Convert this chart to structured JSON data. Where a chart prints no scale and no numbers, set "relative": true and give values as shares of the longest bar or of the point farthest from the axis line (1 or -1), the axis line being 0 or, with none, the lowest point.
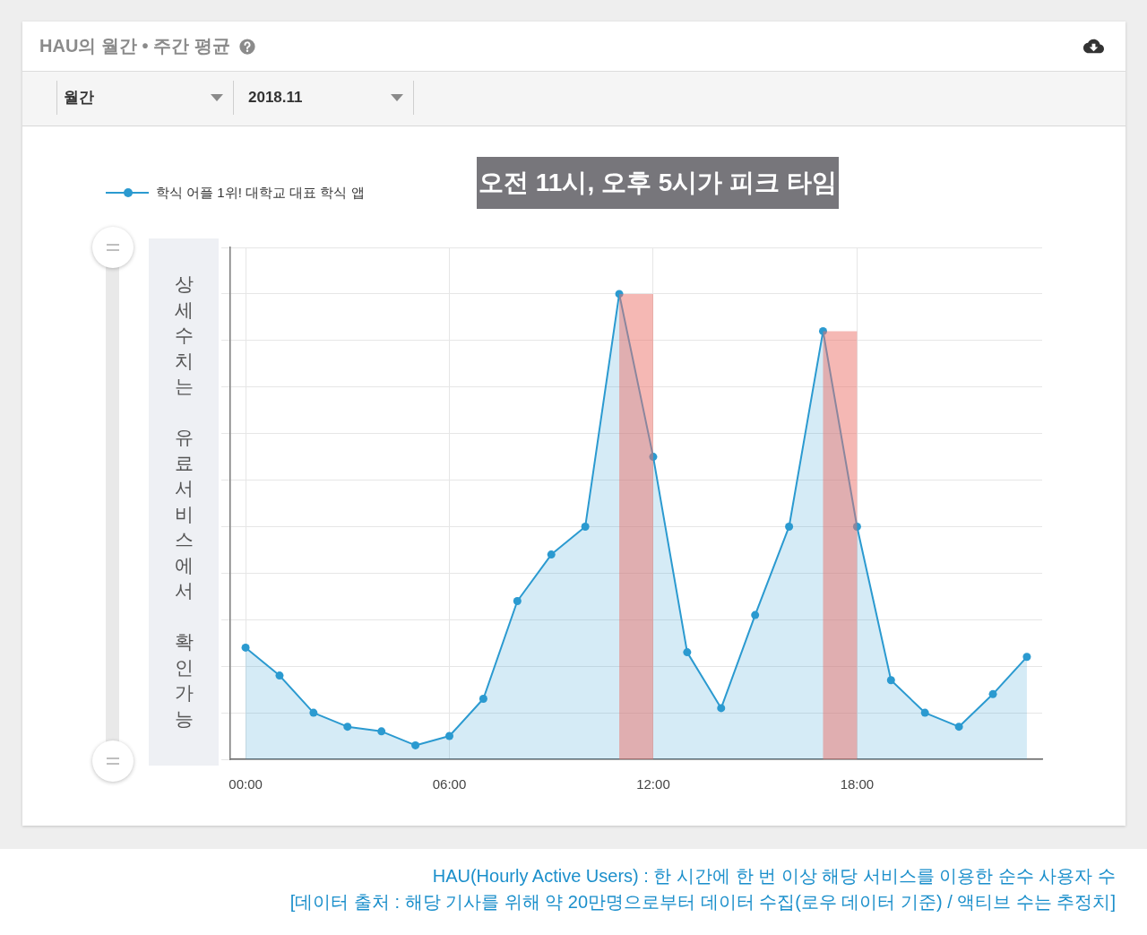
{
  "chart_data": {
    "type": "area",
    "title": "HAU의 월간 • 주간 평균",
    "subtitle": "오전 11시, 오후 5시가 피크 타임",
    "x": [
      0,
      1,
      2,
      3,
      4,
      5,
      6,
      7,
      8,
      9,
      10,
      11,
      12,
      13,
      14,
      15,
      16,
      17,
      18,
      19,
      20,
      21,
      22,
      23
    ],
    "xlim": [
      -0.45,
      23.45
    ],
    "xticks": [
      {
        "value": 0,
        "label": "00:00"
      },
      {
        "value": 6,
        "label": "06:00"
      },
      {
        "value": 12,
        "label": "12:00"
      },
      {
        "value": 18,
        "label": "18:00"
      }
    ],
    "relative": true,
    "series": [
      {
        "name": "학식 어플 1위! 대학교 대표 학식 앱",
        "color": "#2b9ad0",
        "values": [
          0.24,
          0.18,
          0.1,
          0.07,
          0.06,
          0.03,
          0.05,
          0.13,
          0.34,
          0.44,
          0.5,
          1,
          0.65,
          0.23,
          0.11,
          0.31,
          0.5,
          0.92,
          0.5,
          0.17,
          0.1,
          0.07,
          0.14,
          0.22
        ]
      }
    ],
    "bands": [
      {
        "axis": "x",
        "from": 11,
        "to": 12,
        "color": "#eb7169"
      },
      {
        "axis": "x",
        "from": 17,
        "to": 18,
        "color": "#eb7169"
      }
    ],
    "grid": true,
    "legend": "top left",
    "marker": "circle",
    "line_style": "solid",
    "annotations": [
      "월간",
      "2018.11",
      "상세수치는 유료서비스에서 확인가능",
      "HAU(Hourly Active Users) : 한 시간에 한 번 이상 해당 서비스를 이용한 순수 사용자 수",
      "[데이터 출처 : 해당 기사를 위해 약 20만명으로부터 데이터 수집(로우 데이터 기준) / 액티브 수는 추정치]"
    ]
  }
}
